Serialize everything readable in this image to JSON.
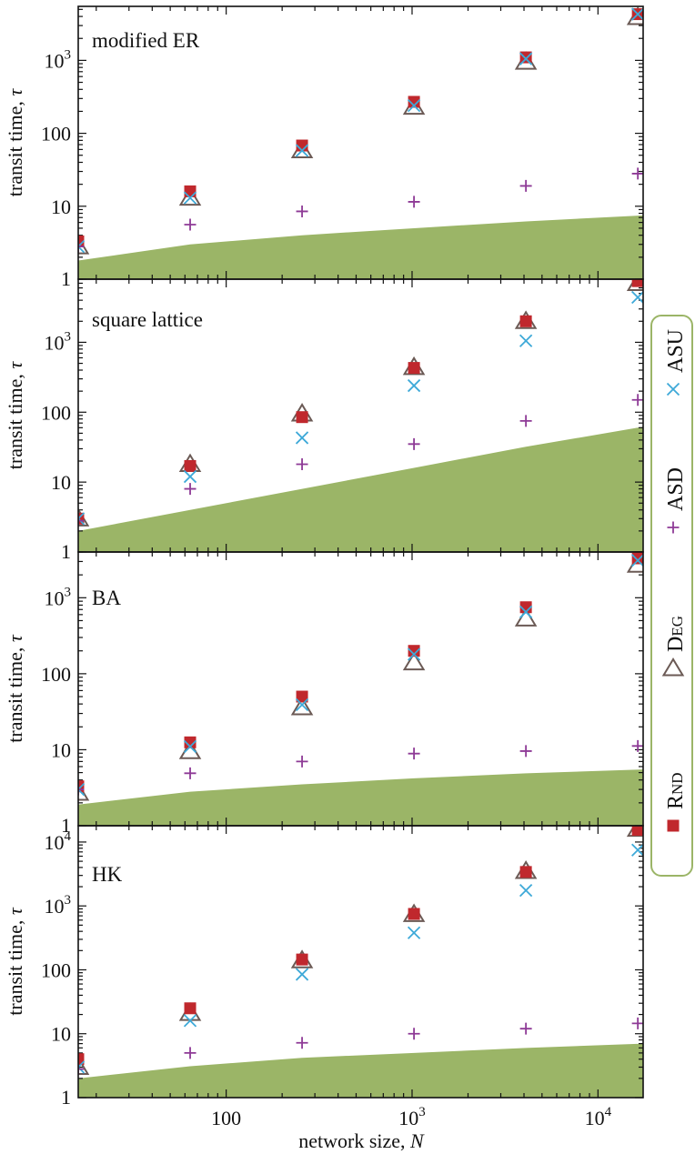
{
  "figure": {
    "xlabel": "network size, N",
    "xlabel_prefix": "network size, ",
    "xlabel_var": "N",
    "ylabel_prefix": "transit time, ",
    "ylabel_var": "τ"
  },
  "legend": {
    "position": "right",
    "entries": [
      {
        "key": "rnd",
        "label_main": "R",
        "label_small": "ND",
        "marker": "filled-square",
        "color": "#c0282d"
      },
      {
        "key": "deg",
        "label_main": "D",
        "label_small": "EG",
        "marker": "open-triangle",
        "color": "#6b5a55"
      },
      {
        "key": "asd",
        "label_main": "ASD",
        "label_small": "",
        "marker": "plus",
        "color": "#8e3a96"
      },
      {
        "key": "asu",
        "label_main": "ASU",
        "label_small": "",
        "marker": "x",
        "color": "#3ea9d8"
      }
    ]
  },
  "colors": {
    "area": "#9bb567",
    "rnd": "#c0282d",
    "deg": "#6b5a55",
    "asd": "#8e3a96",
    "asu": "#3ea9d8",
    "legend_border": "#9bb567"
  },
  "chart_data": [
    {
      "type": "scatter",
      "title": "modified ER",
      "x": [
        16,
        64,
        256,
        1024,
        4096,
        16384
      ],
      "xscale": "log",
      "yscale": "log",
      "xlim": [
        16,
        17500
      ],
      "ylim": [
        1,
        5500
      ],
      "ytick_labels": [
        "1",
        "10",
        "100",
        "10^3"
      ],
      "area": {
        "x": [
          16,
          64,
          256,
          1024,
          4096,
          17500
        ],
        "y": [
          1.8,
          3.0,
          4.0,
          5.0,
          6.2,
          7.5
        ]
      },
      "series": [
        {
          "name": "RND",
          "values": [
            3.3,
            16,
            68,
            270,
            1100,
            4300
          ]
        },
        {
          "name": "DEG",
          "values": [
            2.8,
            13,
            58,
            230,
            950,
            3900
          ]
        },
        {
          "name": "ASD",
          "values": [
            2.8,
            5.6,
            8.5,
            11.5,
            19,
            28
          ]
        },
        {
          "name": "ASU",
          "values": [
            2.8,
            13,
            58,
            240,
            1050,
            4300
          ]
        }
      ]
    },
    {
      "type": "scatter",
      "title": "square lattice",
      "x": [
        16,
        64,
        256,
        1024,
        4096,
        16384
      ],
      "xscale": "log",
      "yscale": "log",
      "xlim": [
        16,
        17500
      ],
      "ylim": [
        1,
        8000
      ],
      "ytick_labels": [
        "1",
        "10",
        "100",
        "10^3"
      ],
      "area": {
        "x": [
          16,
          64,
          256,
          1024,
          4096,
          17500
        ],
        "y": [
          2.0,
          4.0,
          8.0,
          16,
          32,
          62
        ]
      },
      "series": [
        {
          "name": "RND",
          "values": [
            3.0,
            17,
            85,
            430,
            2000,
            7500
          ]
        },
        {
          "name": "DEG",
          "values": [
            3.0,
            18,
            95,
            440,
            2000,
            7000
          ]
        },
        {
          "name": "ASD",
          "values": [
            2.8,
            8,
            18,
            35,
            75,
            150
          ]
        },
        {
          "name": "ASU",
          "values": [
            3.0,
            12,
            43,
            240,
            1050,
            4400
          ]
        }
      ]
    },
    {
      "type": "scatter",
      "title": "BA",
      "x": [
        16,
        64,
        256,
        1024,
        4096,
        16384
      ],
      "xscale": "log",
      "yscale": "log",
      "xlim": [
        16,
        17500
      ],
      "ylim": [
        1,
        4000
      ],
      "ytick_labels": [
        "1",
        "10",
        "100",
        "10^3"
      ],
      "area": {
        "x": [
          16,
          64,
          256,
          1024,
          4096,
          17500
        ],
        "y": [
          1.9,
          2.8,
          3.5,
          4.2,
          4.9,
          5.5
        ]
      },
      "series": [
        {
          "name": "RND",
          "values": [
            3.3,
            12.5,
            50,
            200,
            750,
            3300
          ]
        },
        {
          "name": "DEG",
          "values": [
            2.7,
            9.5,
            36,
            140,
            530,
            2700
          ]
        },
        {
          "name": "ASD",
          "values": [
            3.0,
            4.9,
            7,
            8.9,
            9.6,
            11.2
          ]
        },
        {
          "name": "ASU",
          "values": [
            3.0,
            11,
            39,
            180,
            650,
            3100
          ]
        }
      ]
    },
    {
      "type": "scatter",
      "title": "HK",
      "x": [
        16,
        64,
        256,
        1024,
        4096,
        16384
      ],
      "xscale": "log",
      "yscale": "log",
      "xlim": [
        16,
        17500
      ],
      "ylim": [
        1,
        18000
      ],
      "xtick_labels": [
        "100",
        "10^3",
        "10^4"
      ],
      "ytick_labels": [
        "1",
        "10",
        "100",
        "10^3",
        "10^4"
      ],
      "area": {
        "x": [
          16,
          64,
          256,
          1024,
          4096,
          17500
        ],
        "y": [
          2.0,
          3.1,
          4.2,
          5.0,
          6.0,
          7.0
        ]
      },
      "series": [
        {
          "name": "RND",
          "values": [
            4.0,
            25,
            145,
            750,
            3400,
            15500
          ]
        },
        {
          "name": "DEG",
          "values": [
            3.0,
            21,
            140,
            740,
            3500,
            16000
          ]
        },
        {
          "name": "ASD",
          "values": [
            2.8,
            5,
            7.2,
            10,
            12,
            14.5
          ]
        },
        {
          "name": "ASU",
          "values": [
            3.0,
            16,
            85,
            380,
            1750,
            7500
          ]
        }
      ]
    }
  ]
}
